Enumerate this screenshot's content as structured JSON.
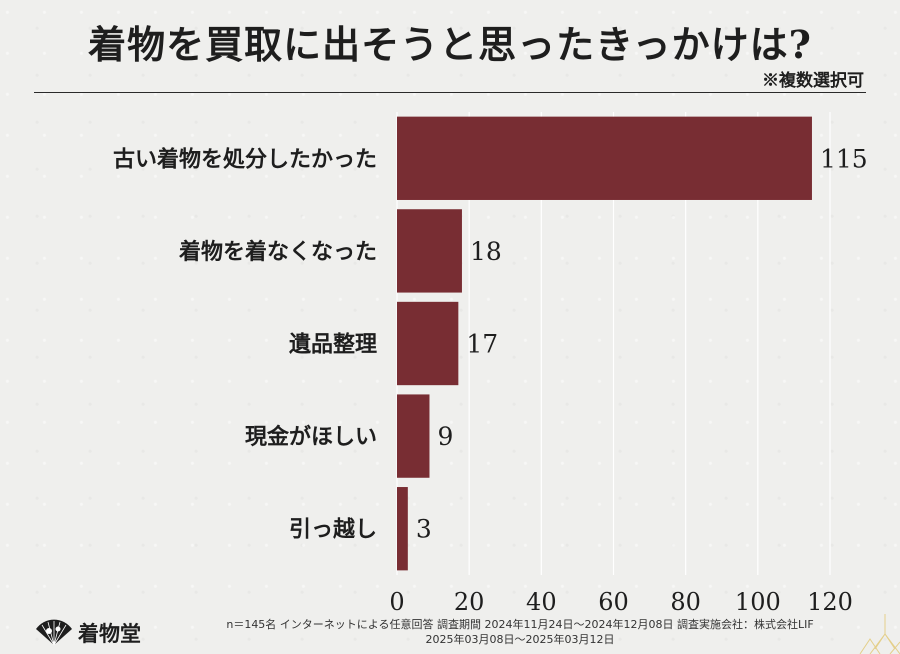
{
  "title": "着物を買取に出そうと思ったきっかけは?",
  "note": "※複数選択可",
  "footnote": {
    "line1": "n＝145名 インターネットによる任意回答 調査期間 2024年11月24日～2024年12月08日 調査実施会社：株式会社LIF",
    "line2": "2025年03月08日～2025年03月12日"
  },
  "logo": {
    "text": "着物堂",
    "icon": "folding-fan-icon"
  },
  "colors": {
    "bar": "#782d33",
    "grid": "#ffffff",
    "text": "#1e1e1e",
    "background": "#efefed"
  },
  "chart_data": {
    "type": "bar",
    "orientation": "horizontal",
    "categories": [
      "古い着物を処分したかった",
      "着物を着なくなった",
      "遺品整理",
      "現金がほしい",
      "引っ越し"
    ],
    "values": [
      115,
      18,
      17,
      9,
      3
    ],
    "xlim": [
      0,
      120
    ],
    "xticks": [
      0,
      20,
      40,
      60,
      80,
      100,
      120
    ],
    "grid": true,
    "data_labels": true
  }
}
